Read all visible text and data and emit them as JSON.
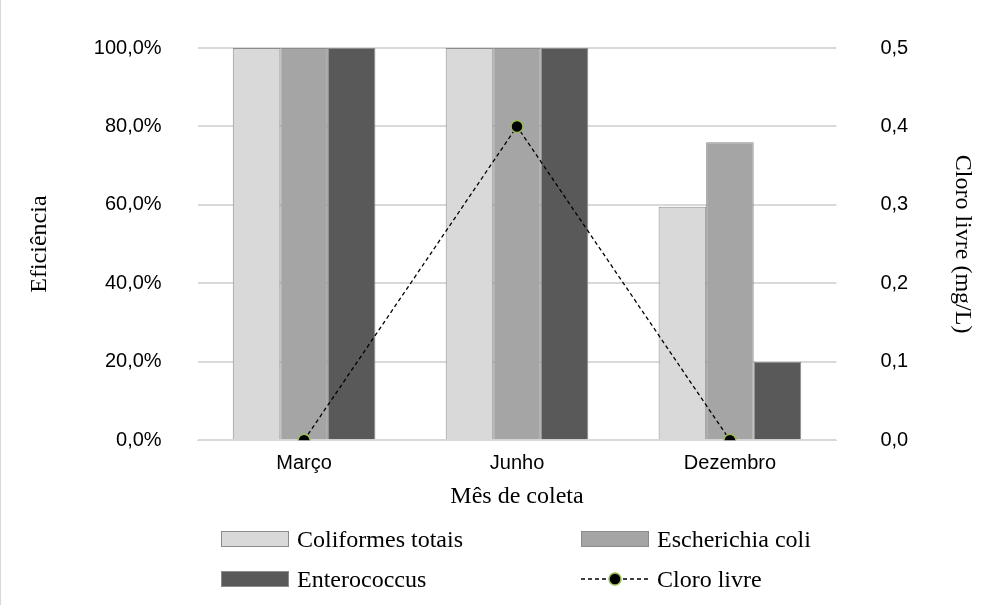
{
  "chart_data": {
    "type": "bar",
    "categories": [
      "Março",
      "Junho",
      "Dezembro"
    ],
    "xlabel": "Mês de coleta",
    "ylabel": "Eficiência",
    "y2label": "Cloro livre (mg/L)",
    "series": [
      {
        "name": "Coliformes totais",
        "color": "#d9d9d9",
        "values": [
          100,
          100,
          59.5
        ]
      },
      {
        "name": "Escherichia coli",
        "color": "#a5a5a5",
        "values": [
          100,
          100,
          76
        ]
      },
      {
        "name": "Enterococcus",
        "color": "#595959",
        "values": [
          100,
          100,
          20
        ]
      },
      {
        "name": "Cloro livre",
        "type": "line",
        "axis": "y2",
        "color": "#000000",
        "line_style": "dashed",
        "marker": "circle",
        "values": [
          0,
          0.4,
          0
        ]
      }
    ],
    "ylim": [
      0,
      100
    ],
    "yticks": [
      {
        "value": 0,
        "label": "0,0%"
      },
      {
        "value": 20,
        "label": "20,0%"
      },
      {
        "value": 40,
        "label": "40,0%"
      },
      {
        "value": 60,
        "label": "60,0%"
      },
      {
        "value": 80,
        "label": "80,0%"
      },
      {
        "value": 100,
        "label": "100,0%"
      }
    ],
    "y2lim": [
      0,
      0.5
    ],
    "y2ticks": [
      {
        "value": 0,
        "label": "0,0"
      },
      {
        "value": 0.1,
        "label": "0,1"
      },
      {
        "value": 0.2,
        "label": "0,2"
      },
      {
        "value": 0.3,
        "label": "0,3"
      },
      {
        "value": 0.4,
        "label": "0,4"
      },
      {
        "value": 0.5,
        "label": "0,5"
      }
    ],
    "grid": "y",
    "legend": "bottom"
  }
}
